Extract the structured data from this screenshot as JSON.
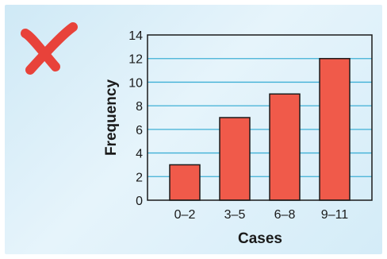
{
  "mark_icon": "red-x-mark",
  "colors": {
    "bar_fill": "#f05a4a",
    "bar_stroke": "#1a1a1a",
    "grid": "#3fb0d6",
    "mark": "#e8423a"
  },
  "chart_data": {
    "type": "bar",
    "title": "",
    "xlabel": "Cases",
    "ylabel": "Frequency",
    "categories": [
      "0–2",
      "3–5",
      "6–8",
      "9–11"
    ],
    "values": [
      3,
      7,
      9,
      12
    ],
    "ylim": [
      0,
      14
    ],
    "yticks": [
      0,
      2,
      4,
      6,
      8,
      10,
      12,
      14
    ],
    "grid": true
  }
}
